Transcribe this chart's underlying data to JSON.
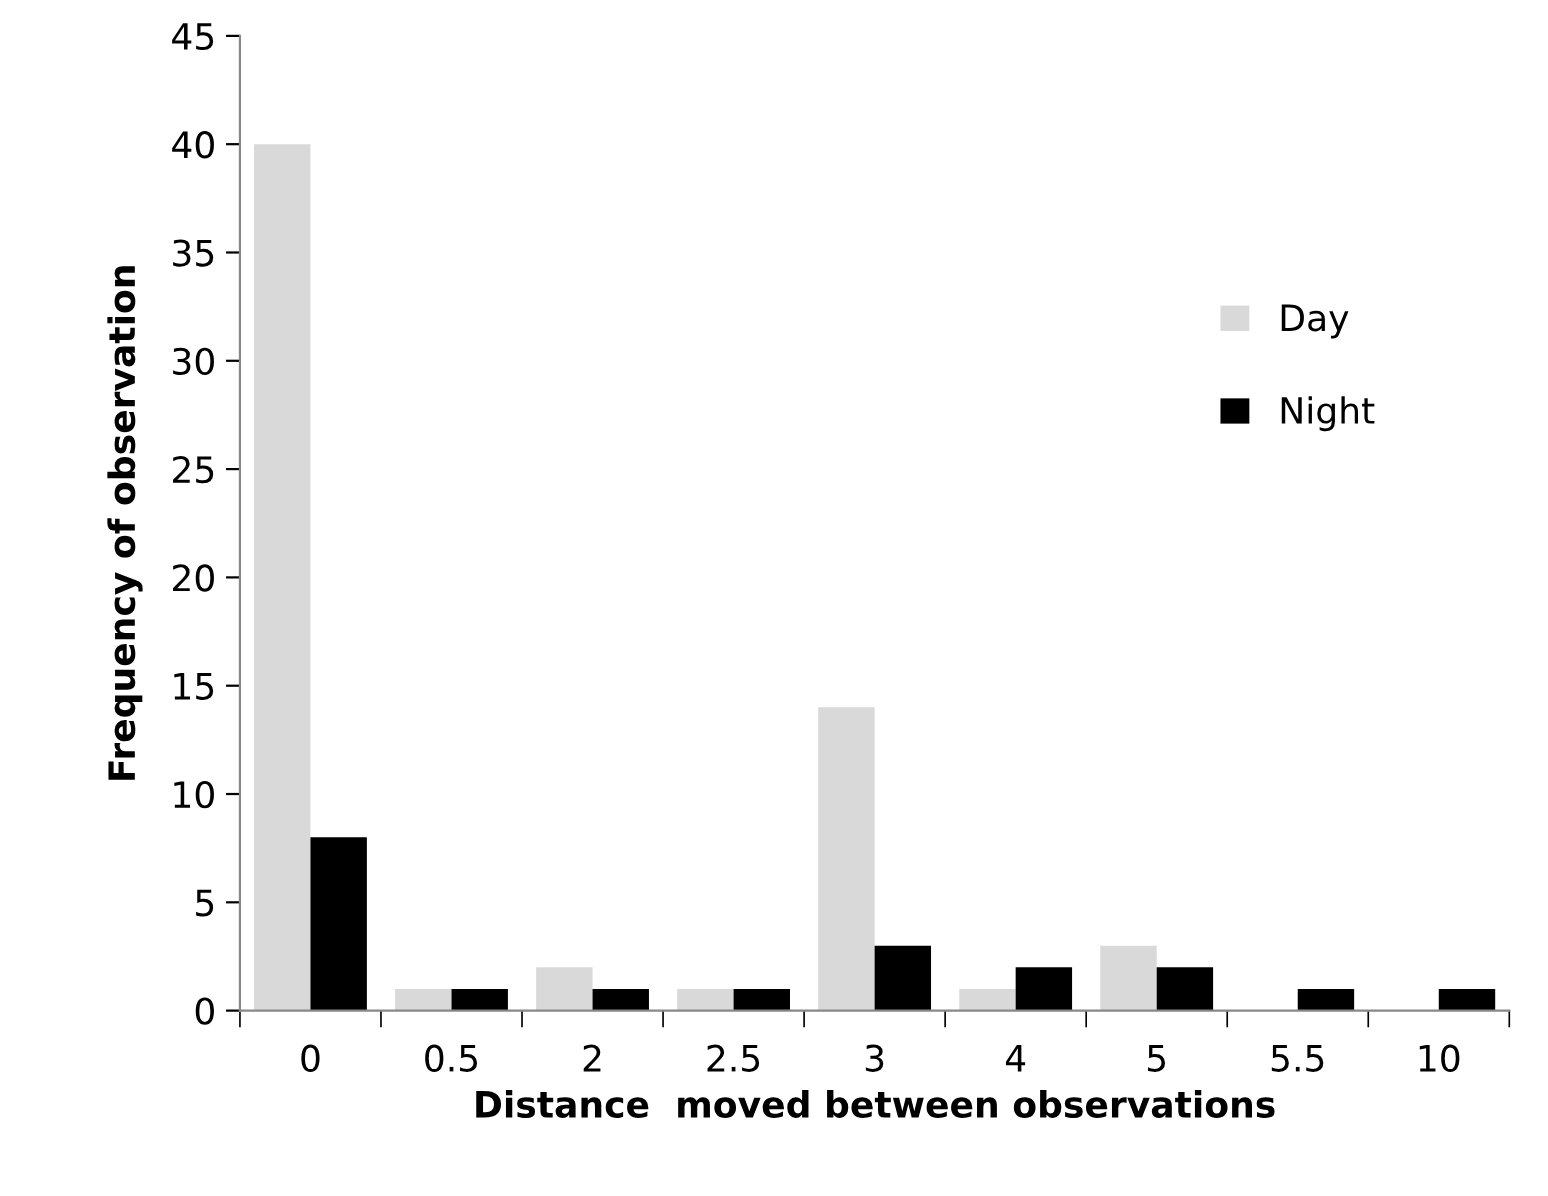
{
  "chart_data": {
    "type": "bar",
    "xlabel": "Distance  moved between observations",
    "ylabel": "Frequency of observation",
    "categories": [
      "0",
      "0.5",
      "2",
      "2.5",
      "3",
      "4",
      "5",
      "5.5",
      "10"
    ],
    "series": [
      {
        "name": "Day",
        "color": "#d9d9d9",
        "values": [
          40,
          1,
          2,
          1,
          14,
          1,
          3,
          0,
          0
        ]
      },
      {
        "name": "Night",
        "color": "#000000",
        "values": [
          8,
          1,
          1,
          1,
          3,
          2,
          2,
          1,
          1
        ]
      }
    ],
    "ylim": [
      0,
      45
    ],
    "yticks": [
      0,
      5,
      10,
      15,
      20,
      25,
      30,
      35,
      40,
      45
    ],
    "grid": false,
    "legend": "right"
  }
}
